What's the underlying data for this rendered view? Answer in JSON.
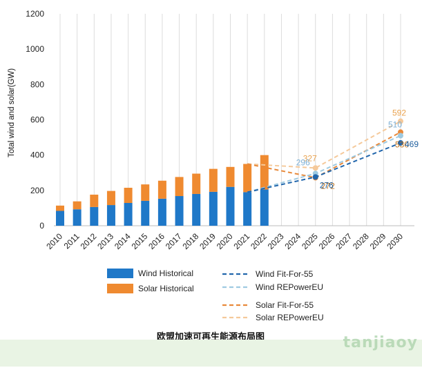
{
  "chart_data": {
    "type": "bar",
    "title": "欧盟加速可再生能源布局图",
    "ylabel": "Total wind and solar(GW)",
    "xlabel": "",
    "ylim": [
      0,
      1200
    ],
    "yticks": [
      0,
      200,
      400,
      600,
      800,
      1000,
      1200
    ],
    "categories": [
      "2010",
      "2011",
      "2012",
      "2013",
      "2014",
      "2015",
      "2016",
      "2017",
      "2018",
      "2019",
      "2020",
      "2021",
      "2022",
      "2023",
      "2024",
      "2025",
      "2026",
      "2027",
      "2028",
      "2029",
      "2030"
    ],
    "grid": "vertical",
    "colors": {
      "wind_hist": "#1f78c8",
      "solar_hist": "#ef8a30",
      "wind_ff55": "#2166ac",
      "wind_rep": "#9ecae1",
      "solar_ff55": "#e8893a",
      "solar_rep": "#f5c99a",
      "grid": "#dcdcdc"
    },
    "bars": {
      "years": [
        "2010",
        "2011",
        "2012",
        "2013",
        "2014",
        "2015",
        "2016",
        "2017",
        "2018",
        "2019",
        "2020",
        "2021",
        "2022"
      ],
      "wind": [
        84,
        93,
        106,
        117,
        129,
        141,
        153,
        168,
        180,
        192,
        220,
        190,
        205
      ],
      "solar": [
        30,
        45,
        70,
        80,
        86,
        93,
        102,
        108,
        115,
        130,
        113,
        160,
        195
      ]
    },
    "series": [
      {
        "name": "Wind Fit-For-55",
        "style": "dashed",
        "x": [
          "2021",
          "2025",
          "2030"
        ],
        "values": [
          190,
          276,
          469
        ]
      },
      {
        "name": "Wind REPowerEU",
        "style": "dashed",
        "x": [
          "2021",
          "2025",
          "2030"
        ],
        "values": [
          190,
          296,
          510
        ]
      },
      {
        "name": "Solar Fit-For-55",
        "style": "dashed",
        "x": [
          "2021",
          "2025",
          "2030"
        ],
        "values": [
          350,
          272,
          530
        ]
      },
      {
        "name": "Solar REPowerEU",
        "style": "dashed",
        "x": [
          "2021",
          "2025",
          "2030"
        ],
        "values": [
          350,
          327,
          592
        ]
      }
    ],
    "legend": {
      "placement": "bottom",
      "entries": [
        "Wind Historical",
        "Solar Historical",
        "Wind Fit-For-55",
        "Wind REPowerEU",
        "Solar Fit-For-55",
        "Solar REPowerEU"
      ]
    },
    "annotations": [
      "327",
      "272",
      "296",
      "276",
      "592",
      "530",
      "510",
      "469"
    ]
  },
  "watermark_text": "tanjiaoy"
}
